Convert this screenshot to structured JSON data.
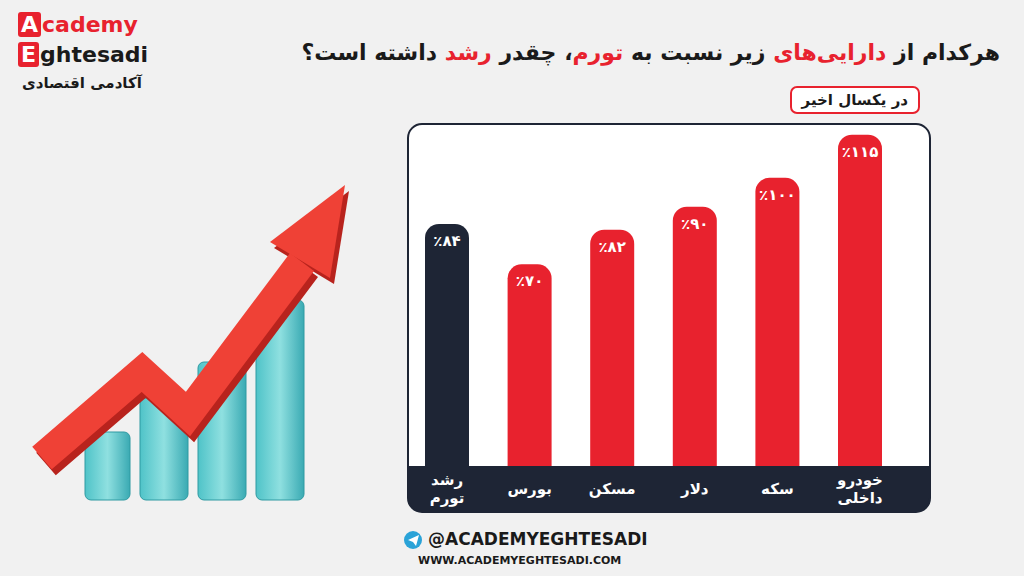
{
  "brand": {
    "name_line1": "Academy",
    "name_line2": "Eghtesadi",
    "name_fa": "آکادمی اقتصادی"
  },
  "header": {
    "highlighted_words": [
      "دارایی‌های",
      "تورم",
      "رشد"
    ]
  },
  "chart_data": {
    "type": "bar",
    "title": "هرکدام از دارایی‌های زیر نسبت به تورم، چقدر رشد داشته است؟",
    "subtitle": "در یکسال اخیر",
    "categories": [
      "رشد تورم",
      "بورس",
      "مسکن",
      "دلار",
      "سکه",
      "خودرو داخلی"
    ],
    "values": [
      84,
      70,
      82,
      90,
      100,
      115
    ],
    "value_labels": [
      "٪۸۴",
      "٪۷۰",
      "٪۸۲",
      "٪۹۰",
      "٪۱۰۰",
      "٪۱۱۵"
    ],
    "colors": [
      "#1e2535",
      "#e8222e",
      "#e8222e",
      "#e8222e",
      "#e8222e",
      "#e8222e"
    ],
    "ylim": [
      0,
      118
    ],
    "data_labels": true,
    "tick_labels": false,
    "grid": false
  },
  "footer": {
    "handle": "@ACADEMYEGHTESADI",
    "website": "WWW.ACADEMYEGHTESADI.COM"
  }
}
